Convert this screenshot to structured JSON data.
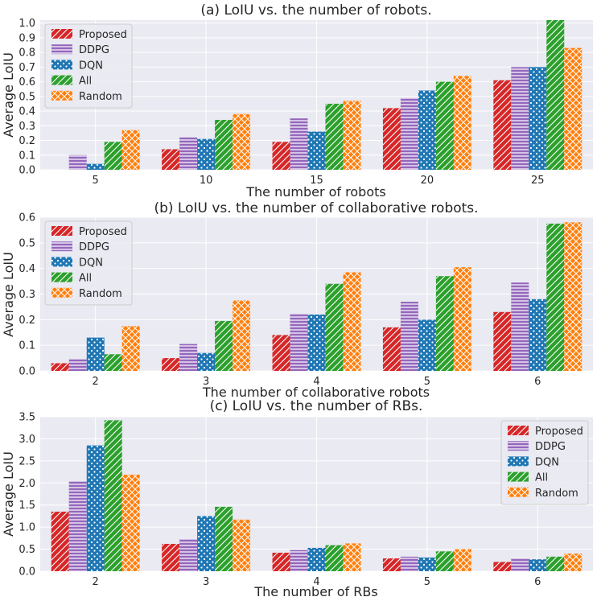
{
  "chart_data": [
    {
      "type": "bar",
      "title": "(a) LoIU vs. the number of robots.",
      "xlabel": "The number of robots",
      "ylabel": "Average LoIU",
      "categories": [
        "5",
        "10",
        "15",
        "20",
        "25"
      ],
      "ylim": [
        0,
        1.02
      ],
      "yticks": [
        0.0,
        0.1,
        0.2,
        0.3,
        0.4,
        0.5,
        0.6,
        0.7,
        0.8,
        0.9,
        1.0
      ],
      "ytick_labels": [
        "0.0",
        "0.1",
        "0.2",
        "0.3",
        "0.4",
        "0.5",
        "0.6",
        "0.7",
        "0.8",
        "0.9",
        "1.0"
      ],
      "legend": "top-left",
      "grid": true,
      "series": [
        {
          "name": "Proposed",
          "values": [
            0.0,
            0.14,
            0.19,
            0.42,
            0.61
          ]
        },
        {
          "name": "DDPG",
          "values": [
            0.1,
            0.22,
            0.35,
            0.49,
            0.7
          ]
        },
        {
          "name": "DQN",
          "values": [
            0.04,
            0.21,
            0.26,
            0.54,
            0.7
          ]
        },
        {
          "name": "All",
          "values": [
            0.19,
            0.34,
            0.45,
            0.6,
            1.02
          ]
        },
        {
          "name": "Random",
          "values": [
            0.27,
            0.38,
            0.47,
            0.64,
            0.83
          ]
        }
      ]
    },
    {
      "type": "bar",
      "title": "(b) LoIU vs. the number of collaborative robots.",
      "xlabel": "The number of collaborative robots",
      "ylabel": "Average LoIU",
      "categories": [
        "2",
        "3",
        "4",
        "5",
        "6"
      ],
      "ylim": [
        0,
        0.6
      ],
      "yticks": [
        0.0,
        0.1,
        0.2,
        0.3,
        0.4,
        0.5,
        0.6
      ],
      "ytick_labels": [
        "0.0",
        "0.1",
        "0.2",
        "0.3",
        "0.4",
        "0.5",
        "0.6"
      ],
      "legend": "top-left",
      "grid": true,
      "series": [
        {
          "name": "Proposed",
          "values": [
            0.03,
            0.05,
            0.14,
            0.17,
            0.23
          ]
        },
        {
          "name": "DDPG",
          "values": [
            0.045,
            0.105,
            0.225,
            0.27,
            0.345
          ]
        },
        {
          "name": "DQN",
          "values": [
            0.13,
            0.07,
            0.22,
            0.2,
            0.28
          ]
        },
        {
          "name": "All",
          "values": [
            0.065,
            0.195,
            0.34,
            0.37,
            0.575
          ]
        },
        {
          "name": "Random",
          "values": [
            0.175,
            0.275,
            0.385,
            0.405,
            0.58
          ]
        }
      ]
    },
    {
      "type": "bar",
      "title": "(c) LoIU vs. the number of RBs.",
      "xlabel": "The number of RBs",
      "ylabel": "Average LoIU",
      "categories": [
        "2",
        "3",
        "4",
        "5",
        "6"
      ],
      "ylim": [
        0,
        3.5
      ],
      "yticks": [
        0.0,
        0.5,
        1.0,
        1.5,
        2.0,
        2.5,
        3.0,
        3.5
      ],
      "ytick_labels": [
        "0.0",
        "0.5",
        "1.0",
        "1.5",
        "2.0",
        "2.5",
        "3.0",
        "3.5"
      ],
      "legend": "top-right",
      "grid": true,
      "series": [
        {
          "name": "Proposed",
          "values": [
            1.35,
            0.62,
            0.42,
            0.29,
            0.21
          ]
        },
        {
          "name": "DDPG",
          "values": [
            2.03,
            0.74,
            0.48,
            0.33,
            0.3
          ]
        },
        {
          "name": "DQN",
          "values": [
            2.85,
            1.25,
            0.53,
            0.31,
            0.27
          ]
        },
        {
          "name": "All",
          "values": [
            3.42,
            1.46,
            0.59,
            0.45,
            0.33
          ]
        },
        {
          "name": "Random",
          "values": [
            2.19,
            1.17,
            0.63,
            0.5,
            0.4
          ]
        }
      ]
    }
  ],
  "styles": {
    "background": "#eaeaf2",
    "grid_color": "#ffffff",
    "series_colors": [
      "#d62728",
      "#9467bd",
      "#1f77b4",
      "#2ca02c",
      "#ff7f0e"
    ],
    "hatches": [
      "diagonal",
      "horizontal",
      "dots",
      "diagonal",
      "cross"
    ]
  }
}
